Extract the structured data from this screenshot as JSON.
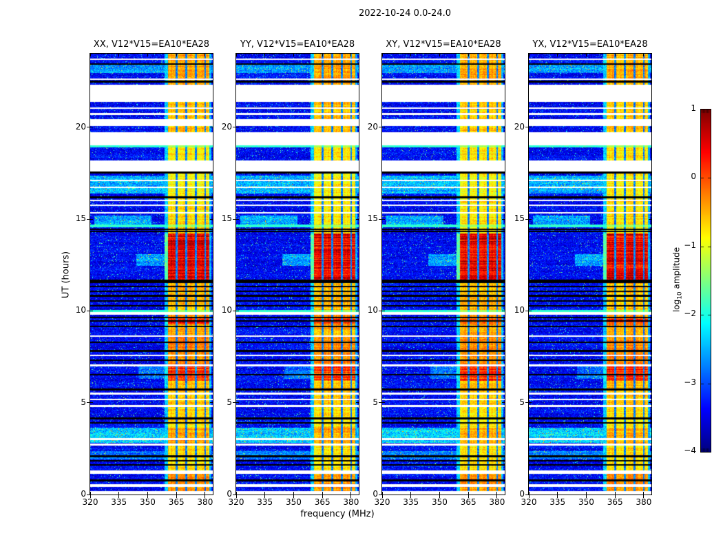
{
  "figure": {
    "title": "2022-10-24 0.0-24.0",
    "background": "#ffffff"
  },
  "axes": {
    "xlabel": "frequency (MHz)",
    "ylabel": "UT (hours)",
    "x_ticks": [
      320,
      335,
      350,
      365,
      380
    ],
    "y_ticks": [
      0,
      5,
      10,
      15,
      20
    ],
    "xlim": [
      320,
      384
    ],
    "ylim": [
      0,
      24
    ]
  },
  "panels": [
    {
      "title": "XX, V12*V15=EA10*EA28",
      "seed": 11
    },
    {
      "title": "YY, V12*V15=EA10*EA28",
      "seed": 23
    },
    {
      "title": "XY, V12*V15=EA10*EA28",
      "seed": 37
    },
    {
      "title": "YX, V12*V15=EA10*EA28",
      "seed": 53
    }
  ],
  "colorbar": {
    "label_prefix": "log",
    "label_sub": "10",
    "label_suffix": " amplitude",
    "ticks": [
      "1",
      "0",
      "−1",
      "−2",
      "−3",
      "−4"
    ],
    "tick_values": [
      1,
      0,
      -1,
      -2,
      -3,
      -4
    ],
    "vmin": -4,
    "vmax": 1,
    "colormap": "jet"
  },
  "chart_data": {
    "type": "heatmap",
    "title": "2022-10-24 0.0-24.0",
    "subplot_titles": [
      "XX, V12*V15=EA10*EA28",
      "YY, V12*V15=EA10*EA28",
      "XY, V12*V15=EA10*EA28",
      "YX, V12*V15=EA10*EA28"
    ],
    "xlabel": "frequency (MHz)",
    "ylabel": "UT (hours)",
    "xlim": [
      320,
      384
    ],
    "ylim": [
      0,
      24
    ],
    "grid": false,
    "colorbar": {
      "label": "log10 amplitude",
      "range": [
        -4,
        1
      ],
      "colormap": "jet",
      "ticks": [
        1,
        0,
        -1,
        -2,
        -3,
        -4
      ]
    },
    "description": "Four dynamic-spectrum panels (polarizations XX, YY, XY, YX) of log10 amplitude vs frequency (320-384 MHz) and time (UT 0-24 h). Blue background noise ~1e-3.4 with a bright emission band at ~360.6-382 MHz split into ~5 MHz sub-bands; horizontal white rows = no data, black rows = flagged data.",
    "spectrogram_model": {
      "background_level": -3.35,
      "band_mhz": [
        360.6,
        382.2
      ],
      "band_edge_cyan_mhz": [
        358.8,
        360.6
      ],
      "band_right_fade_mhz": [
        382.2,
        383.2
      ],
      "subband_gaps_mhz": [
        [
          364.75,
          365.65
        ],
        [
          369.75,
          370.65
        ],
        [
          374.75,
          375.65
        ],
        [
          379.75,
          380.45
        ]
      ],
      "band_heat_by_ut": [
        [
          24,
          22.3,
          -0.45
        ],
        [
          22.3,
          19.7,
          -0.6
        ],
        [
          19.7,
          18.2,
          -0.75
        ],
        [
          18.2,
          16.1,
          -0.85
        ],
        [
          16.1,
          14.2,
          -0.75
        ],
        [
          14.2,
          11.66,
          0.45
        ],
        [
          11.66,
          9.95,
          -0.55
        ],
        [
          9.95,
          9.68,
          -0.35
        ],
        [
          9.68,
          9.28,
          0.1
        ],
        [
          9.28,
          8.65,
          -0.5
        ],
        [
          8.65,
          7.05,
          -0.3
        ],
        [
          7.05,
          6.18,
          0.12
        ],
        [
          6.18,
          4.85,
          -0.6
        ],
        [
          4.85,
          3.65,
          -0.75
        ],
        [
          3.65,
          2.75,
          -0.45
        ],
        [
          2.75,
          1.3,
          -0.75
        ],
        [
          1.3,
          0.55,
          -0.3
        ],
        [
          0.55,
          0,
          -0.4
        ]
      ],
      "no_data_ut": [
        [
          22.3,
          21.38
        ],
        [
          20.42,
          20.05
        ],
        [
          19.72,
          19.02
        ],
        [
          18.2,
          17.58
        ],
        [
          1.3,
          1.12
        ],
        [
          0.56,
          0.42
        ],
        [
          0.18,
          0
        ]
      ],
      "white_lines_ut": [
        [
          23.7,
          0.05
        ],
        [
          22.62,
          0.04
        ],
        [
          21.05,
          0.04
        ],
        [
          20.72,
          0.04
        ],
        [
          17.1,
          0.05
        ],
        [
          16.73,
          0.05
        ],
        [
          16.0,
          0.04
        ],
        [
          15.75,
          0.04
        ],
        [
          15.35,
          0.04
        ],
        [
          9.87,
          0.07
        ],
        [
          8.62,
          0.05
        ],
        [
          7.58,
          0.05
        ],
        [
          7.02,
          0.05
        ],
        [
          5.5,
          0.05
        ],
        [
          5.18,
          0.04
        ],
        [
          4.82,
          0.04
        ],
        [
          3.02,
          0.05
        ],
        [
          2.72,
          0.05
        ]
      ],
      "black_lines_ut": [
        [
          23.45,
          0.04
        ],
        [
          22.48,
          0.04
        ],
        [
          17.52,
          0.06
        ],
        [
          16.17,
          0.06
        ],
        [
          14.45,
          0.04
        ],
        [
          14.32,
          0.04
        ],
        [
          11.62,
          0.09
        ],
        [
          11.32,
          0.04
        ],
        [
          11.05,
          0.04
        ],
        [
          10.82,
          0.04
        ],
        [
          10.55,
          0.04
        ],
        [
          10.28,
          0.04
        ],
        [
          9.65,
          0.04
        ],
        [
          9.45,
          0.04
        ],
        [
          9.15,
          0.04
        ],
        [
          8.3,
          0.04
        ],
        [
          7.82,
          0.04
        ],
        [
          7.3,
          0.04
        ],
        [
          6.52,
          0.04
        ],
        [
          5.72,
          0.04
        ],
        [
          4.15,
          0.05
        ],
        [
          3.9,
          0.05
        ],
        [
          2.08,
          0.04
        ],
        [
          1.85,
          0.04
        ],
        [
          1.6,
          0.04
        ],
        [
          0.78,
          0.05
        ]
      ],
      "cyan_lines_ut": [
        [
          18.95,
          0.06
        ],
        [
          14.62,
          0.08
        ],
        [
          10.0,
          0.05
        ]
      ],
      "bg_boost_regions": [
        {
          "ut": [
            23.4,
            22.95
          ],
          "mhz": [
            320,
            384
          ],
          "amt": 0.75
        },
        {
          "ut": [
            17.35,
            16.4
          ],
          "mhz": [
            320,
            384
          ],
          "amt": 0.9
        },
        {
          "ut": [
            15.2,
            14.7
          ],
          "mhz": [
            322,
            352
          ],
          "amt": 0.85
        },
        {
          "ut": [
            13.1,
            12.45
          ],
          "mhz": [
            344,
            361
          ],
          "amt": 0.8
        },
        {
          "ut": [
            7.0,
            6.3
          ],
          "mhz": [
            345,
            361
          ],
          "amt": 0.55
        },
        {
          "ut": [
            3.65,
            2.8
          ],
          "mhz": [
            320,
            384
          ],
          "amt": 1.05
        },
        {
          "ut": [
            2.35,
            1.9
          ],
          "mhz": [
            320,
            384
          ],
          "amt": 0.6
        }
      ]
    }
  }
}
